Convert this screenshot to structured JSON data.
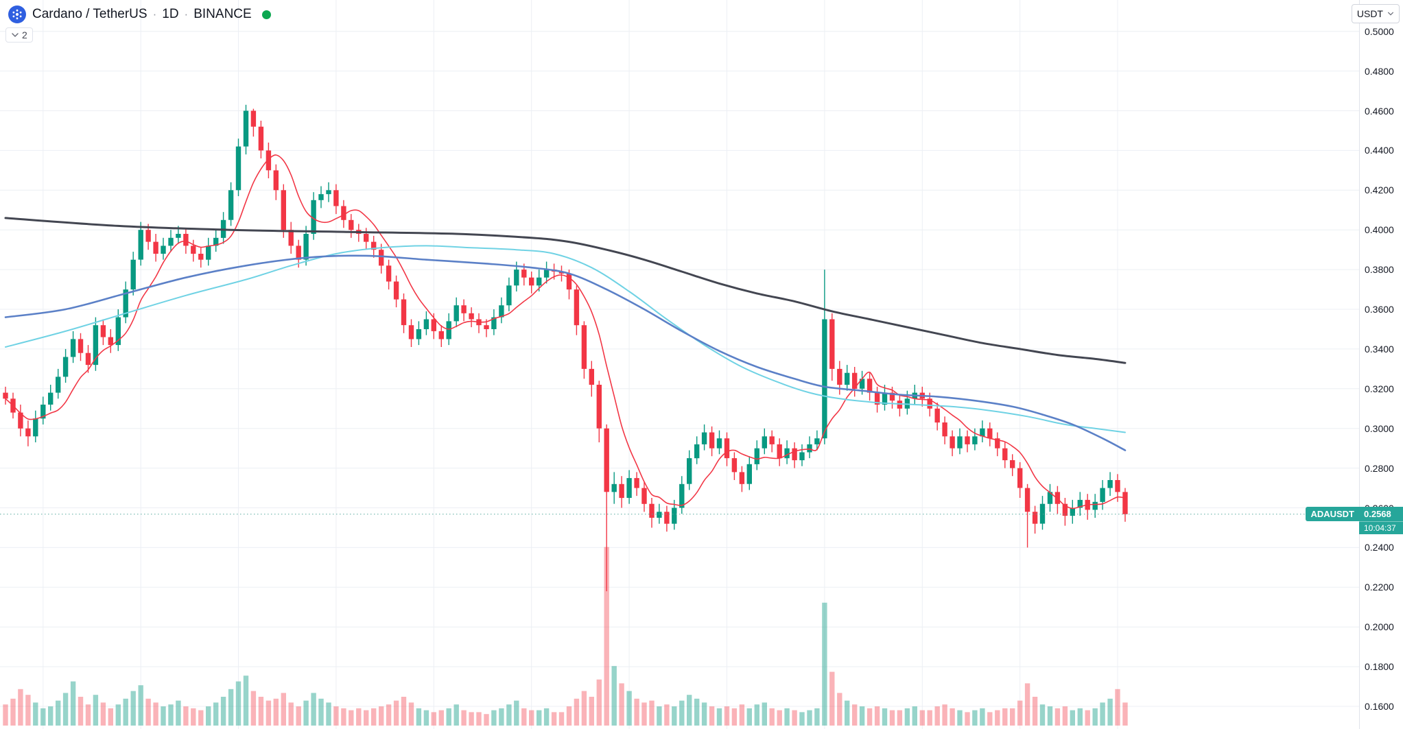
{
  "header": {
    "pair": "Cardano / TetherUS",
    "interval": "1D",
    "exchange": "BINANCE",
    "separator": "·",
    "legend_collapsed_count": "2"
  },
  "currency_selector": {
    "label": "USDT"
  },
  "price_label": {
    "symbol": "ADAUSDT",
    "price": "0.2568",
    "countdown": "10:04:37"
  },
  "price_axis": {
    "labels": [
      "0.5000",
      "0.4800",
      "0.4600",
      "0.4400",
      "0.4200",
      "0.4000",
      "0.3800",
      "0.3600",
      "0.3400",
      "0.3200",
      "0.3000",
      "0.2800",
      "0.2600",
      "0.2400",
      "0.2200",
      "0.2000",
      "0.1800",
      "0.1600"
    ]
  },
  "colors": {
    "up": "#089981",
    "down": "#f23645",
    "grid": "#eceff4",
    "axis_text": "#131722",
    "price_tag": "#26a69a",
    "status_dot": "#0ca750",
    "logo": "#2f5fe0",
    "last_price_line": "#56a99e"
  },
  "chart_data": {
    "type": "candlestick",
    "title": "Cardano / TetherUS, 1D, BINANCE",
    "symbol": "ADAUSDT",
    "interval": "1D",
    "exchange": "BINANCE",
    "last_price": 0.2568,
    "ylim": [
      0.1486,
      0.5158
    ],
    "yticks": [
      0.5,
      0.48,
      0.46,
      0.44,
      0.42,
      0.4,
      0.38,
      0.36,
      0.34,
      0.32,
      0.3,
      0.28,
      0.26,
      0.24,
      0.22,
      0.2,
      0.18,
      0.16
    ],
    "v_gridlines": [
      5,
      18,
      31,
      44,
      57,
      70,
      83,
      96,
      109,
      122,
      135,
      148
    ],
    "candles": [
      [
        0.318,
        0.321,
        0.312,
        0.315
      ],
      [
        0.315,
        0.318,
        0.305,
        0.308
      ],
      [
        0.308,
        0.312,
        0.296,
        0.3
      ],
      [
        0.3,
        0.304,
        0.291,
        0.296
      ],
      [
        0.296,
        0.309,
        0.293,
        0.305
      ],
      [
        0.305,
        0.316,
        0.302,
        0.312
      ],
      [
        0.312,
        0.322,
        0.309,
        0.318
      ],
      [
        0.318,
        0.33,
        0.315,
        0.326
      ],
      [
        0.326,
        0.34,
        0.323,
        0.336
      ],
      [
        0.336,
        0.349,
        0.333,
        0.345
      ],
      [
        0.345,
        0.348,
        0.334,
        0.338
      ],
      [
        0.338,
        0.342,
        0.328,
        0.332
      ],
      [
        0.332,
        0.356,
        0.329,
        0.352
      ],
      [
        0.352,
        0.355,
        0.342,
        0.346
      ],
      [
        0.346,
        0.35,
        0.338,
        0.342
      ],
      [
        0.342,
        0.36,
        0.339,
        0.356
      ],
      [
        0.356,
        0.374,
        0.353,
        0.37
      ],
      [
        0.37,
        0.389,
        0.367,
        0.385
      ],
      [
        0.385,
        0.404,
        0.382,
        0.4
      ],
      [
        0.4,
        0.403,
        0.39,
        0.394
      ],
      [
        0.394,
        0.398,
        0.384,
        0.388
      ],
      [
        0.388,
        0.396,
        0.385,
        0.392
      ],
      [
        0.392,
        0.4,
        0.389,
        0.396
      ],
      [
        0.396,
        0.402,
        0.393,
        0.398
      ],
      [
        0.398,
        0.401,
        0.388,
        0.392
      ],
      [
        0.392,
        0.395,
        0.384,
        0.388
      ],
      [
        0.388,
        0.391,
        0.381,
        0.385
      ],
      [
        0.385,
        0.396,
        0.382,
        0.392
      ],
      [
        0.392,
        0.4,
        0.389,
        0.396
      ],
      [
        0.396,
        0.409,
        0.393,
        0.405
      ],
      [
        0.405,
        0.424,
        0.402,
        0.42
      ],
      [
        0.42,
        0.446,
        0.417,
        0.442
      ],
      [
        0.442,
        0.463,
        0.438,
        0.46
      ],
      [
        0.46,
        0.461,
        0.447,
        0.452
      ],
      [
        0.452,
        0.455,
        0.436,
        0.44
      ],
      [
        0.44,
        0.444,
        0.426,
        0.43
      ],
      [
        0.43,
        0.433,
        0.415,
        0.42
      ],
      [
        0.42,
        0.423,
        0.396,
        0.4
      ],
      [
        0.4,
        0.404,
        0.388,
        0.392
      ],
      [
        0.392,
        0.395,
        0.381,
        0.385
      ],
      [
        0.385,
        0.402,
        0.382,
        0.398
      ],
      [
        0.398,
        0.419,
        0.395,
        0.415
      ],
      [
        0.415,
        0.422,
        0.411,
        0.418
      ],
      [
        0.418,
        0.424,
        0.414,
        0.42
      ],
      [
        0.42,
        0.423,
        0.408,
        0.412
      ],
      [
        0.412,
        0.415,
        0.401,
        0.405
      ],
      [
        0.405,
        0.408,
        0.396,
        0.4
      ],
      [
        0.4,
        0.403,
        0.394,
        0.398
      ],
      [
        0.398,
        0.401,
        0.39,
        0.394
      ],
      [
        0.394,
        0.397,
        0.386,
        0.39
      ],
      [
        0.39,
        0.393,
        0.378,
        0.382
      ],
      [
        0.382,
        0.385,
        0.37,
        0.374
      ],
      [
        0.374,
        0.377,
        0.361,
        0.365
      ],
      [
        0.365,
        0.368,
        0.348,
        0.352
      ],
      [
        0.352,
        0.355,
        0.341,
        0.345
      ],
      [
        0.345,
        0.354,
        0.342,
        0.35
      ],
      [
        0.35,
        0.359,
        0.347,
        0.355
      ],
      [
        0.355,
        0.358,
        0.345,
        0.349
      ],
      [
        0.349,
        0.352,
        0.341,
        0.345
      ],
      [
        0.345,
        0.358,
        0.342,
        0.354
      ],
      [
        0.354,
        0.366,
        0.351,
        0.362
      ],
      [
        0.362,
        0.365,
        0.354,
        0.358
      ],
      [
        0.358,
        0.361,
        0.351,
        0.355
      ],
      [
        0.355,
        0.358,
        0.348,
        0.352
      ],
      [
        0.352,
        0.355,
        0.346,
        0.35
      ],
      [
        0.35,
        0.36,
        0.347,
        0.356
      ],
      [
        0.356,
        0.366,
        0.353,
        0.362
      ],
      [
        0.362,
        0.376,
        0.359,
        0.372
      ],
      [
        0.372,
        0.384,
        0.369,
        0.38
      ],
      [
        0.38,
        0.383,
        0.372,
        0.376
      ],
      [
        0.376,
        0.379,
        0.368,
        0.372
      ],
      [
        0.372,
        0.38,
        0.369,
        0.376
      ],
      [
        0.376,
        0.384,
        0.373,
        0.38
      ],
      [
        0.38,
        0.383,
        0.375,
        0.379
      ],
      [
        0.379,
        0.382,
        0.374,
        0.378
      ],
      [
        0.378,
        0.38,
        0.365,
        0.37
      ],
      [
        0.37,
        0.372,
        0.347,
        0.352
      ],
      [
        0.352,
        0.354,
        0.325,
        0.33
      ],
      [
        0.33,
        0.334,
        0.316,
        0.322
      ],
      [
        0.322,
        0.324,
        0.293,
        0.3
      ],
      [
        0.3,
        0.302,
        0.218,
        0.268
      ],
      [
        0.268,
        0.278,
        0.262,
        0.272
      ],
      [
        0.272,
        0.276,
        0.26,
        0.265
      ],
      [
        0.265,
        0.279,
        0.262,
        0.275
      ],
      [
        0.275,
        0.278,
        0.266,
        0.27
      ],
      [
        0.27,
        0.273,
        0.258,
        0.262
      ],
      [
        0.262,
        0.265,
        0.25,
        0.255
      ],
      [
        0.255,
        0.262,
        0.252,
        0.258
      ],
      [
        0.258,
        0.261,
        0.248,
        0.252
      ],
      [
        0.252,
        0.264,
        0.249,
        0.26
      ],
      [
        0.26,
        0.276,
        0.257,
        0.272
      ],
      [
        0.272,
        0.289,
        0.269,
        0.285
      ],
      [
        0.285,
        0.296,
        0.282,
        0.292
      ],
      [
        0.292,
        0.302,
        0.289,
        0.298
      ],
      [
        0.298,
        0.301,
        0.286,
        0.29
      ],
      [
        0.29,
        0.299,
        0.287,
        0.295
      ],
      [
        0.295,
        0.298,
        0.281,
        0.285
      ],
      [
        0.285,
        0.288,
        0.274,
        0.278
      ],
      [
        0.278,
        0.281,
        0.268,
        0.272
      ],
      [
        0.272,
        0.286,
        0.269,
        0.282
      ],
      [
        0.282,
        0.294,
        0.279,
        0.29
      ],
      [
        0.29,
        0.3,
        0.287,
        0.296
      ],
      [
        0.296,
        0.299,
        0.288,
        0.292
      ],
      [
        0.292,
        0.295,
        0.281,
        0.285
      ],
      [
        0.285,
        0.294,
        0.282,
        0.29
      ],
      [
        0.29,
        0.293,
        0.28,
        0.284
      ],
      [
        0.284,
        0.292,
        0.281,
        0.288
      ],
      [
        0.288,
        0.296,
        0.285,
        0.292
      ],
      [
        0.292,
        0.299,
        0.289,
        0.295
      ],
      [
        0.295,
        0.38,
        0.292,
        0.355
      ],
      [
        0.355,
        0.358,
        0.324,
        0.33
      ],
      [
        0.33,
        0.334,
        0.317,
        0.322
      ],
      [
        0.322,
        0.332,
        0.319,
        0.328
      ],
      [
        0.328,
        0.331,
        0.316,
        0.32
      ],
      [
        0.32,
        0.329,
        0.317,
        0.325
      ],
      [
        0.325,
        0.328,
        0.314,
        0.318
      ],
      [
        0.318,
        0.321,
        0.308,
        0.312
      ],
      [
        0.312,
        0.322,
        0.309,
        0.318
      ],
      [
        0.318,
        0.321,
        0.31,
        0.314
      ],
      [
        0.314,
        0.317,
        0.306,
        0.31
      ],
      [
        0.31,
        0.319,
        0.307,
        0.315
      ],
      [
        0.315,
        0.322,
        0.312,
        0.318
      ],
      [
        0.318,
        0.321,
        0.311,
        0.315
      ],
      [
        0.315,
        0.318,
        0.306,
        0.31
      ],
      [
        0.31,
        0.313,
        0.299,
        0.303
      ],
      [
        0.303,
        0.306,
        0.292,
        0.296
      ],
      [
        0.296,
        0.299,
        0.286,
        0.29
      ],
      [
        0.29,
        0.3,
        0.287,
        0.296
      ],
      [
        0.296,
        0.299,
        0.288,
        0.292
      ],
      [
        0.292,
        0.3,
        0.289,
        0.296
      ],
      [
        0.296,
        0.304,
        0.293,
        0.3
      ],
      [
        0.3,
        0.303,
        0.291,
        0.295
      ],
      [
        0.295,
        0.298,
        0.286,
        0.29
      ],
      [
        0.29,
        0.293,
        0.28,
        0.284
      ],
      [
        0.284,
        0.287,
        0.276,
        0.28
      ],
      [
        0.28,
        0.283,
        0.265,
        0.27
      ],
      [
        0.27,
        0.272,
        0.24,
        0.258
      ],
      [
        0.258,
        0.261,
        0.247,
        0.252
      ],
      [
        0.252,
        0.266,
        0.249,
        0.262
      ],
      [
        0.262,
        0.272,
        0.258,
        0.268
      ],
      [
        0.268,
        0.271,
        0.257,
        0.262
      ],
      [
        0.262,
        0.265,
        0.251,
        0.256
      ],
      [
        0.256,
        0.264,
        0.252,
        0.26
      ],
      [
        0.26,
        0.268,
        0.256,
        0.264
      ],
      [
        0.264,
        0.267,
        0.254,
        0.259
      ],
      [
        0.259,
        0.267,
        0.255,
        0.263
      ],
      [
        0.263,
        0.274,
        0.259,
        0.27
      ],
      [
        0.27,
        0.278,
        0.266,
        0.274
      ],
      [
        0.274,
        0.277,
        0.263,
        0.268
      ],
      [
        0.268,
        0.27,
        0.253,
        0.2568
      ]
    ],
    "volume": [
      1.1,
      1.4,
      1.9,
      1.6,
      1.2,
      0.9,
      1.0,
      1.3,
      1.7,
      2.3,
      1.5,
      1.1,
      1.6,
      1.2,
      0.9,
      1.1,
      1.4,
      1.8,
      2.1,
      1.4,
      1.2,
      1.0,
      1.1,
      1.3,
      1.0,
      0.9,
      0.8,
      1.0,
      1.2,
      1.5,
      1.9,
      2.3,
      2.6,
      1.8,
      1.5,
      1.3,
      1.4,
      1.7,
      1.2,
      1.0,
      1.3,
      1.7,
      1.4,
      1.2,
      1.0,
      0.9,
      0.8,
      0.9,
      0.8,
      0.9,
      1.0,
      1.1,
      1.3,
      1.5,
      1.2,
      0.9,
      0.8,
      0.7,
      0.8,
      0.9,
      1.1,
      0.8,
      0.7,
      0.7,
      0.6,
      0.8,
      0.9,
      1.1,
      1.3,
      0.9,
      0.8,
      0.8,
      0.9,
      0.7,
      0.7,
      1.0,
      1.4,
      1.8,
      1.5,
      2.4,
      9.3,
      3.1,
      2.2,
      1.8,
      1.4,
      1.2,
      1.3,
      1.0,
      1.1,
      1.0,
      1.3,
      1.6,
      1.4,
      1.2,
      1.0,
      0.9,
      1.0,
      0.9,
      1.1,
      0.9,
      1.1,
      1.2,
      0.9,
      0.8,
      0.9,
      0.8,
      0.7,
      0.8,
      0.9,
      6.4,
      2.8,
      1.7,
      1.3,
      1.1,
      1.0,
      0.9,
      1.0,
      0.9,
      0.8,
      0.8,
      0.9,
      1.0,
      0.8,
      0.8,
      1.0,
      1.1,
      0.9,
      0.8,
      0.7,
      0.8,
      0.9,
      0.7,
      0.8,
      0.9,
      0.9,
      1.3,
      2.2,
      1.5,
      1.1,
      1.0,
      0.9,
      1.0,
      0.8,
      0.9,
      0.8,
      0.9,
      1.2,
      1.4,
      1.9,
      1.2
    ],
    "overlays": [
      {
        "id": "fast",
        "color": "#f23645",
        "width": 1.6,
        "period": 7
      },
      {
        "id": "cyan",
        "color": "#6fd2e4",
        "width": 2,
        "points": [
          [
            0,
            0.341
          ],
          [
            8,
            0.349
          ],
          [
            16,
            0.358
          ],
          [
            24,
            0.367
          ],
          [
            32,
            0.375
          ],
          [
            38,
            0.382
          ],
          [
            44,
            0.388
          ],
          [
            50,
            0.391
          ],
          [
            56,
            0.392
          ],
          [
            62,
            0.391
          ],
          [
            68,
            0.39
          ],
          [
            73,
            0.388
          ],
          [
            78,
            0.381
          ],
          [
            83,
            0.369
          ],
          [
            88,
            0.355
          ],
          [
            93,
            0.342
          ],
          [
            98,
            0.331
          ],
          [
            103,
            0.323
          ],
          [
            107,
            0.318
          ],
          [
            111,
            0.315
          ],
          [
            116,
            0.313
          ],
          [
            121,
            0.312
          ],
          [
            126,
            0.311
          ],
          [
            131,
            0.309
          ],
          [
            136,
            0.306
          ],
          [
            141,
            0.302
          ],
          [
            145,
            0.3
          ],
          [
            149,
            0.298
          ]
        ]
      },
      {
        "id": "blue",
        "color": "#5b80c7",
        "width": 2.6,
        "points": [
          [
            0,
            0.356
          ],
          [
            8,
            0.36
          ],
          [
            16,
            0.368
          ],
          [
            24,
            0.376
          ],
          [
            32,
            0.382
          ],
          [
            40,
            0.386
          ],
          [
            48,
            0.387
          ],
          [
            56,
            0.385
          ],
          [
            64,
            0.383
          ],
          [
            70,
            0.381
          ],
          [
            75,
            0.378
          ],
          [
            80,
            0.37
          ],
          [
            85,
            0.36
          ],
          [
            90,
            0.349
          ],
          [
            95,
            0.339
          ],
          [
            100,
            0.331
          ],
          [
            105,
            0.325
          ],
          [
            109,
            0.321
          ],
          [
            114,
            0.319
          ],
          [
            119,
            0.317
          ],
          [
            124,
            0.316
          ],
          [
            129,
            0.314
          ],
          [
            134,
            0.311
          ],
          [
            138,
            0.307
          ],
          [
            142,
            0.302
          ],
          [
            146,
            0.295
          ],
          [
            149,
            0.289
          ]
        ]
      },
      {
        "id": "slow",
        "color": "#434651",
        "width": 3,
        "points": [
          [
            0,
            0.406
          ],
          [
            15,
            0.402
          ],
          [
            30,
            0.4
          ],
          [
            45,
            0.399
          ],
          [
            60,
            0.398
          ],
          [
            70,
            0.396
          ],
          [
            75,
            0.394
          ],
          [
            80,
            0.39
          ],
          [
            85,
            0.385
          ],
          [
            90,
            0.379
          ],
          [
            95,
            0.373
          ],
          [
            100,
            0.368
          ],
          [
            105,
            0.364
          ],
          [
            110,
            0.359
          ],
          [
            115,
            0.355
          ],
          [
            120,
            0.351
          ],
          [
            125,
            0.347
          ],
          [
            130,
            0.343
          ],
          [
            135,
            0.34
          ],
          [
            140,
            0.337
          ],
          [
            145,
            0.335
          ],
          [
            149,
            0.333
          ]
        ]
      }
    ]
  }
}
